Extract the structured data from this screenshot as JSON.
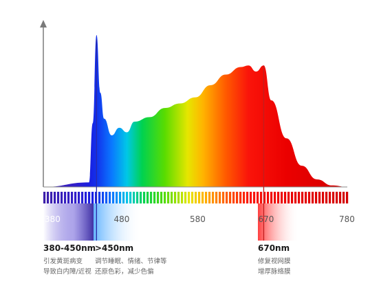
{
  "chart_data": {
    "type": "area",
    "title": "",
    "xlabel": "",
    "ylabel": "",
    "x": [
      380,
      440,
      445,
      450,
      455,
      460,
      470,
      480,
      490,
      500,
      520,
      540,
      560,
      580,
      600,
      620,
      640,
      650,
      660,
      670,
      680,
      700,
      720,
      740,
      760,
      780
    ],
    "values": [
      0,
      0.03,
      0.42,
      1.0,
      0.62,
      0.45,
      0.34,
      0.39,
      0.36,
      0.43,
      0.46,
      0.52,
      0.55,
      0.59,
      0.67,
      0.74,
      0.79,
      0.8,
      0.76,
      0.8,
      0.57,
      0.32,
      0.14,
      0.05,
      0.01,
      0
    ],
    "xlim": [
      380,
      780
    ],
    "ylim": [
      0,
      1.05
    ],
    "tick_labels": [
      "380",
      "480",
      "580",
      "670",
      "780"
    ],
    "tick_values": [
      380,
      480,
      580,
      670,
      780
    ],
    "markers": [
      {
        "x": 450,
        "color": "#2a2aa8"
      },
      {
        "x": 670,
        "color": "#c21e1e"
      }
    ],
    "grid": false,
    "legend": "none"
  },
  "annotations": [
    {
      "range": "380-450nm",
      "lines": [
        "引发黄斑病变",
        "导致白内障/近视"
      ]
    },
    {
      "range": ">450nm",
      "lines": [
        "调节睡眠、情绪、节律等",
        "还原色彩，减少色偏"
      ]
    },
    {
      "range": "670nm",
      "lines": [
        "修复视网膜",
        "增厚脉络膜"
      ]
    }
  ],
  "colors": {
    "axis": "#7a7a7a",
    "uv_band": "#4b2fb5",
    "red_band": "#ff3b3b"
  }
}
